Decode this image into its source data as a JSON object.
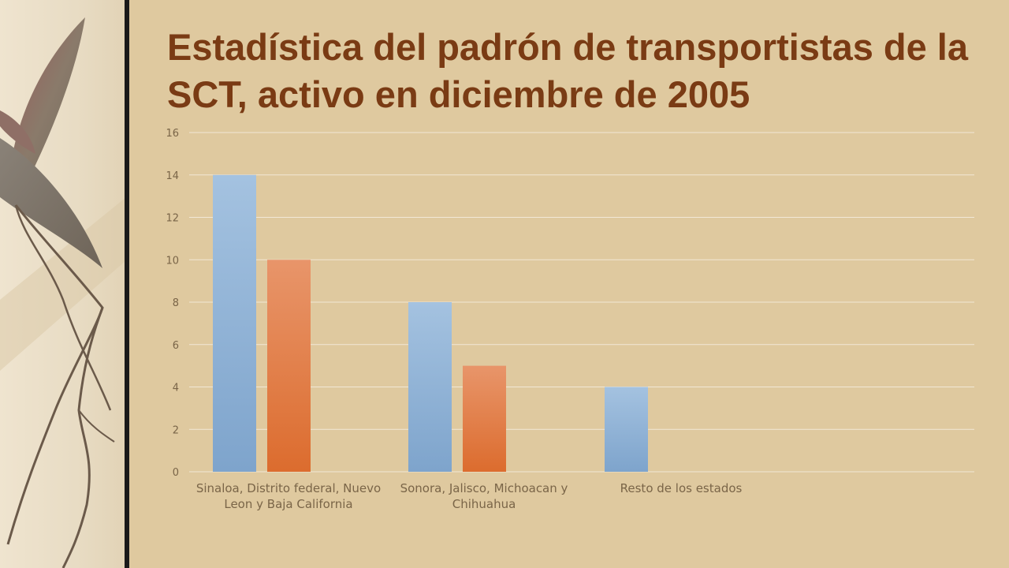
{
  "title": "Estadística del padrón de transportistas de la SCT, activo en diciembre de 2005",
  "chart_data": {
    "type": "bar",
    "categories": [
      "Sinaloa, Distrito federal, Nuevo Leon y Baja California",
      "Sonora, Jalisco, Michoacan y Chihuahua",
      "Resto de los estados"
    ],
    "series": [
      {
        "values": [
          14,
          8,
          4
        ],
        "color": "#8fb3d6"
      },
      {
        "values": [
          10,
          5,
          null
        ],
        "color": "#e27a3f"
      }
    ],
    "ylim": [
      0,
      16
    ],
    "yticks": [
      "0",
      "2",
      "4",
      "6",
      "8",
      "10",
      "12",
      "14",
      "16"
    ],
    "grid": true,
    "legend": "none"
  },
  "colors": {
    "background": "#dfc99f",
    "title": "#7a3b14",
    "gridline": "#f2e8d6",
    "axis_text": "#7a6548"
  }
}
